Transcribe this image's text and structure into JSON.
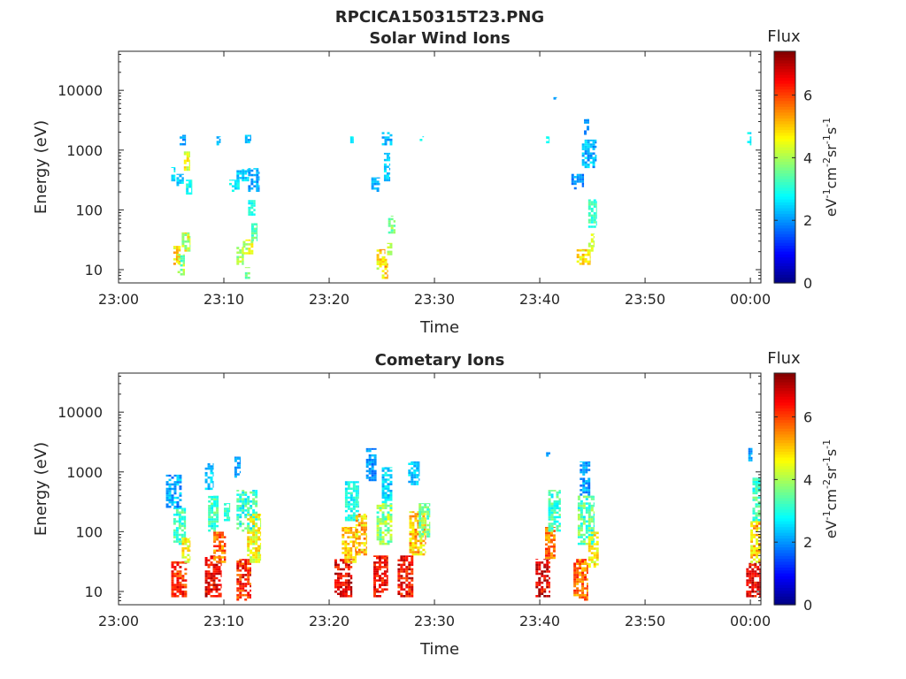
{
  "figure_title": "RPCICA150315T23.PNG",
  "chart_data": [
    {
      "type": "heatmap",
      "title": "Solar Wind Ions",
      "xlabel": "Time",
      "ylabel": "Energy (eV)",
      "x_tick_labels": [
        "23:00",
        "23:10",
        "23:20",
        "23:30",
        "23:40",
        "23:50",
        "00:00"
      ],
      "x_ticks_minutes": [
        0,
        10,
        20,
        30,
        40,
        50,
        60
      ],
      "xlim_minutes": [
        0,
        61
      ],
      "y_scale": "log",
      "ylim": [
        6,
        45000
      ],
      "y_tick_labels": [
        "10",
        "100",
        "1000",
        "10000"
      ],
      "y_ticks": [
        10,
        100,
        1000,
        10000
      ],
      "colorbar": {
        "title": "Flux",
        "label": "eV-1cm-2sr-1s-1",
        "range": [
          0,
          7.4
        ],
        "ticks": [
          0,
          2,
          4,
          6
        ],
        "colormap": "jet"
      },
      "patches": [
        {
          "t0": 5.0,
          "t1": 5.4,
          "e0": 300,
          "e1": 520,
          "f0": 2.2,
          "f1": 3.0
        },
        {
          "t0": 5.5,
          "t1": 6.2,
          "e0": 250,
          "e1": 400,
          "f0": 2.0,
          "f1": 2.8
        },
        {
          "t0": 5.8,
          "t1": 6.4,
          "e0": 1200,
          "e1": 1800,
          "f0": 1.8,
          "f1": 2.5
        },
        {
          "t0": 6.2,
          "t1": 6.8,
          "e0": 450,
          "e1": 950,
          "f0": 4.0,
          "f1": 5.0
        },
        {
          "t0": 6.4,
          "t1": 7.0,
          "e0": 180,
          "e1": 320,
          "f0": 2.5,
          "f1": 3.2
        },
        {
          "t0": 5.2,
          "t1": 5.9,
          "e0": 12,
          "e1": 25,
          "f0": 4.2,
          "f1": 5.5
        },
        {
          "t0": 5.6,
          "t1": 6.3,
          "e0": 8,
          "e1": 18,
          "f0": 3.0,
          "f1": 4.5
        },
        {
          "t0": 6.0,
          "t1": 6.8,
          "e0": 20,
          "e1": 42,
          "f0": 3.5,
          "f1": 5.0
        },
        {
          "t0": 9.3,
          "t1": 9.7,
          "e0": 1200,
          "e1": 1700,
          "f0": 2.0,
          "f1": 2.5
        },
        {
          "t0": 10.5,
          "t1": 11.5,
          "e0": 200,
          "e1": 320,
          "f0": 2.3,
          "f1": 3.0
        },
        {
          "t0": 11.2,
          "t1": 12.4,
          "e0": 300,
          "e1": 480,
          "f0": 2.0,
          "f1": 2.8
        },
        {
          "t0": 12.3,
          "t1": 13.4,
          "e0": 200,
          "e1": 500,
          "f0": 1.8,
          "f1": 2.6
        },
        {
          "t0": 12.0,
          "t1": 12.6,
          "e0": 1300,
          "e1": 1800,
          "f0": 2.0,
          "f1": 2.6
        },
        {
          "t0": 12.3,
          "t1": 13.0,
          "e0": 80,
          "e1": 150,
          "f0": 2.6,
          "f1": 3.2
        },
        {
          "t0": 11.2,
          "t1": 11.9,
          "e0": 12,
          "e1": 24,
          "f0": 3.5,
          "f1": 4.5
        },
        {
          "t0": 11.8,
          "t1": 12.8,
          "e0": 18,
          "e1": 32,
          "f0": 3.6,
          "f1": 4.8
        },
        {
          "t0": 12.6,
          "t1": 13.2,
          "e0": 30,
          "e1": 60,
          "f0": 3.0,
          "f1": 3.8
        },
        {
          "t0": 12.0,
          "t1": 12.5,
          "e0": 7,
          "e1": 11,
          "f0": 3.2,
          "f1": 4.0
        },
        {
          "t0": 22.0,
          "t1": 22.3,
          "e0": 1300,
          "e1": 1700,
          "f0": 2.5,
          "f1": 3.0
        },
        {
          "t0": 24.0,
          "t1": 24.8,
          "e0": 200,
          "e1": 350,
          "f0": 1.8,
          "f1": 2.6
        },
        {
          "t0": 25.0,
          "t1": 26.0,
          "e0": 1200,
          "e1": 2000,
          "f0": 1.8,
          "f1": 2.6
        },
        {
          "t0": 25.2,
          "t1": 25.8,
          "e0": 300,
          "e1": 900,
          "f0": 2.0,
          "f1": 2.8
        },
        {
          "t0": 25.6,
          "t1": 26.3,
          "e0": 40,
          "e1": 80,
          "f0": 3.2,
          "f1": 4.2
        },
        {
          "t0": 24.5,
          "t1": 25.3,
          "e0": 10,
          "e1": 22,
          "f0": 4.0,
          "f1": 5.5
        },
        {
          "t0": 25.0,
          "t1": 25.6,
          "e0": 7,
          "e1": 16,
          "f0": 4.2,
          "f1": 5.6
        },
        {
          "t0": 25.5,
          "t1": 26.0,
          "e0": 16,
          "e1": 28,
          "f0": 3.6,
          "f1": 4.6
        },
        {
          "t0": 28.6,
          "t1": 29.0,
          "e0": 1300,
          "e1": 1700,
          "f0": 2.6,
          "f1": 3.2
        },
        {
          "t0": 40.6,
          "t1": 40.9,
          "e0": 1300,
          "e1": 1700,
          "f0": 2.6,
          "f1": 3.0
        },
        {
          "t0": 41.3,
          "t1": 41.6,
          "e0": 7000,
          "e1": 7700,
          "f0": 2.0,
          "f1": 2.4
        },
        {
          "t0": 43.0,
          "t1": 44.2,
          "e0": 220,
          "e1": 400,
          "f0": 1.6,
          "f1": 2.4
        },
        {
          "t0": 44.0,
          "t1": 45.4,
          "e0": 500,
          "e1": 1500,
          "f0": 1.8,
          "f1": 2.8
        },
        {
          "t0": 44.2,
          "t1": 44.7,
          "e0": 1800,
          "e1": 3300,
          "f0": 1.6,
          "f1": 2.2
        },
        {
          "t0": 44.6,
          "t1": 45.4,
          "e0": 50,
          "e1": 150,
          "f0": 2.8,
          "f1": 3.6
        },
        {
          "t0": 43.5,
          "t1": 44.8,
          "e0": 12,
          "e1": 22,
          "f0": 4.2,
          "f1": 5.4
        },
        {
          "t0": 44.6,
          "t1": 45.2,
          "e0": 20,
          "e1": 40,
          "f0": 3.8,
          "f1": 4.6
        },
        {
          "t0": 59.7,
          "t1": 60.1,
          "e0": 1200,
          "e1": 2000,
          "f0": 2.4,
          "f1": 3.0
        }
      ]
    },
    {
      "type": "heatmap",
      "title": "Cometary Ions",
      "xlabel": "Time",
      "ylabel": "Energy (eV)",
      "x_tick_labels": [
        "23:00",
        "23:10",
        "23:20",
        "23:30",
        "23:40",
        "23:50",
        "00:00"
      ],
      "x_ticks_minutes": [
        0,
        10,
        20,
        30,
        40,
        50,
        60
      ],
      "xlim_minutes": [
        0,
        61
      ],
      "y_scale": "log",
      "ylim": [
        6,
        45000
      ],
      "y_tick_labels": [
        "10",
        "100",
        "1000",
        "10000"
      ],
      "y_ticks": [
        10,
        100,
        1000,
        10000
      ],
      "colorbar": {
        "title": "Flux",
        "label": "eV-1cm-2sr-1s-1",
        "range": [
          0,
          7.4
        ],
        "ticks": [
          0,
          2,
          4,
          6
        ],
        "colormap": "jet"
      },
      "patches": [
        {
          "t0": 4.5,
          "t1": 6.0,
          "e0": 250,
          "e1": 900,
          "f0": 1.6,
          "f1": 2.8
        },
        {
          "t0": 5.2,
          "t1": 6.4,
          "e0": 60,
          "e1": 250,
          "f0": 2.6,
          "f1": 3.8
        },
        {
          "t0": 5.0,
          "t1": 6.5,
          "e0": 8,
          "e1": 32,
          "f0": 5.5,
          "f1": 6.8
        },
        {
          "t0": 6.0,
          "t1": 6.8,
          "e0": 30,
          "e1": 80,
          "f0": 4.0,
          "f1": 5.2
        },
        {
          "t0": 8.2,
          "t1": 9.0,
          "e0": 500,
          "e1": 1400,
          "f0": 2.0,
          "f1": 2.8
        },
        {
          "t0": 8.5,
          "t1": 9.5,
          "e0": 100,
          "e1": 400,
          "f0": 2.6,
          "f1": 3.8
        },
        {
          "t0": 8.2,
          "t1": 9.8,
          "e0": 8,
          "e1": 40,
          "f0": 6.0,
          "f1": 7.2
        },
        {
          "t0": 9.0,
          "t1": 10.2,
          "e0": 30,
          "e1": 100,
          "f0": 5.0,
          "f1": 6.4
        },
        {
          "t0": 10.0,
          "t1": 10.6,
          "e0": 150,
          "e1": 300,
          "f0": 2.8,
          "f1": 3.6
        },
        {
          "t0": 11.0,
          "t1": 11.6,
          "e0": 800,
          "e1": 1800,
          "f0": 1.8,
          "f1": 2.4
        },
        {
          "t0": 11.2,
          "t1": 13.2,
          "e0": 100,
          "e1": 500,
          "f0": 2.4,
          "f1": 3.8
        },
        {
          "t0": 11.2,
          "t1": 12.6,
          "e0": 7,
          "e1": 35,
          "f0": 5.5,
          "f1": 7.0
        },
        {
          "t0": 12.2,
          "t1": 13.5,
          "e0": 30,
          "e1": 200,
          "f0": 3.8,
          "f1": 5.2
        },
        {
          "t0": 20.5,
          "t1": 22.2,
          "e0": 8,
          "e1": 35,
          "f0": 6.0,
          "f1": 7.3
        },
        {
          "t0": 21.2,
          "t1": 22.6,
          "e0": 30,
          "e1": 120,
          "f0": 4.4,
          "f1": 5.6
        },
        {
          "t0": 21.5,
          "t1": 22.8,
          "e0": 150,
          "e1": 700,
          "f0": 2.4,
          "f1": 3.4
        },
        {
          "t0": 22.5,
          "t1": 23.6,
          "e0": 40,
          "e1": 200,
          "f0": 4.2,
          "f1": 5.8
        },
        {
          "t0": 23.5,
          "t1": 24.5,
          "e0": 700,
          "e1": 2500,
          "f0": 1.6,
          "f1": 2.4
        },
        {
          "t0": 24.2,
          "t1": 25.6,
          "e0": 8,
          "e1": 40,
          "f0": 5.8,
          "f1": 7.2
        },
        {
          "t0": 24.5,
          "t1": 26.0,
          "e0": 60,
          "e1": 300,
          "f0": 3.0,
          "f1": 4.6
        },
        {
          "t0": 25.0,
          "t1": 26.0,
          "e0": 300,
          "e1": 1200,
          "f0": 2.0,
          "f1": 3.0
        },
        {
          "t0": 26.5,
          "t1": 28.0,
          "e0": 8,
          "e1": 40,
          "f0": 5.8,
          "f1": 7.2
        },
        {
          "t0": 27.5,
          "t1": 28.6,
          "e0": 600,
          "e1": 1500,
          "f0": 2.0,
          "f1": 2.8
        },
        {
          "t0": 27.6,
          "t1": 29.2,
          "e0": 40,
          "e1": 220,
          "f0": 4.2,
          "f1": 5.8
        },
        {
          "t0": 28.5,
          "t1": 29.6,
          "e0": 80,
          "e1": 300,
          "f0": 3.0,
          "f1": 4.2
        },
        {
          "t0": 39.6,
          "t1": 41.0,
          "e0": 8,
          "e1": 35,
          "f0": 6.0,
          "f1": 7.3
        },
        {
          "t0": 40.5,
          "t1": 41.5,
          "e0": 35,
          "e1": 120,
          "f0": 5.0,
          "f1": 6.4
        },
        {
          "t0": 40.8,
          "t1": 42.0,
          "e0": 100,
          "e1": 500,
          "f0": 2.6,
          "f1": 3.8
        },
        {
          "t0": 40.6,
          "t1": 41.0,
          "e0": 1800,
          "e1": 2200,
          "f0": 1.8,
          "f1": 2.2
        },
        {
          "t0": 43.2,
          "t1": 44.6,
          "e0": 7,
          "e1": 35,
          "f0": 5.0,
          "f1": 6.4
        },
        {
          "t0": 43.6,
          "t1": 45.2,
          "e0": 60,
          "e1": 400,
          "f0": 2.6,
          "f1": 4.2
        },
        {
          "t0": 43.8,
          "t1": 44.8,
          "e0": 400,
          "e1": 1500,
          "f0": 1.6,
          "f1": 2.6
        },
        {
          "t0": 44.6,
          "t1": 45.6,
          "e0": 25,
          "e1": 100,
          "f0": 4.0,
          "f1": 5.2
        },
        {
          "t0": 59.6,
          "t1": 61.0,
          "e0": 8,
          "e1": 30,
          "f0": 6.0,
          "f1": 7.3
        },
        {
          "t0": 60.0,
          "t1": 61.0,
          "e0": 30,
          "e1": 150,
          "f0": 4.2,
          "f1": 5.8
        },
        {
          "t0": 60.2,
          "t1": 61.0,
          "e0": 150,
          "e1": 800,
          "f0": 2.6,
          "f1": 3.8
        },
        {
          "t0": 59.8,
          "t1": 60.2,
          "e0": 1500,
          "e1": 2800,
          "f0": 1.8,
          "f1": 2.4
        }
      ]
    }
  ]
}
